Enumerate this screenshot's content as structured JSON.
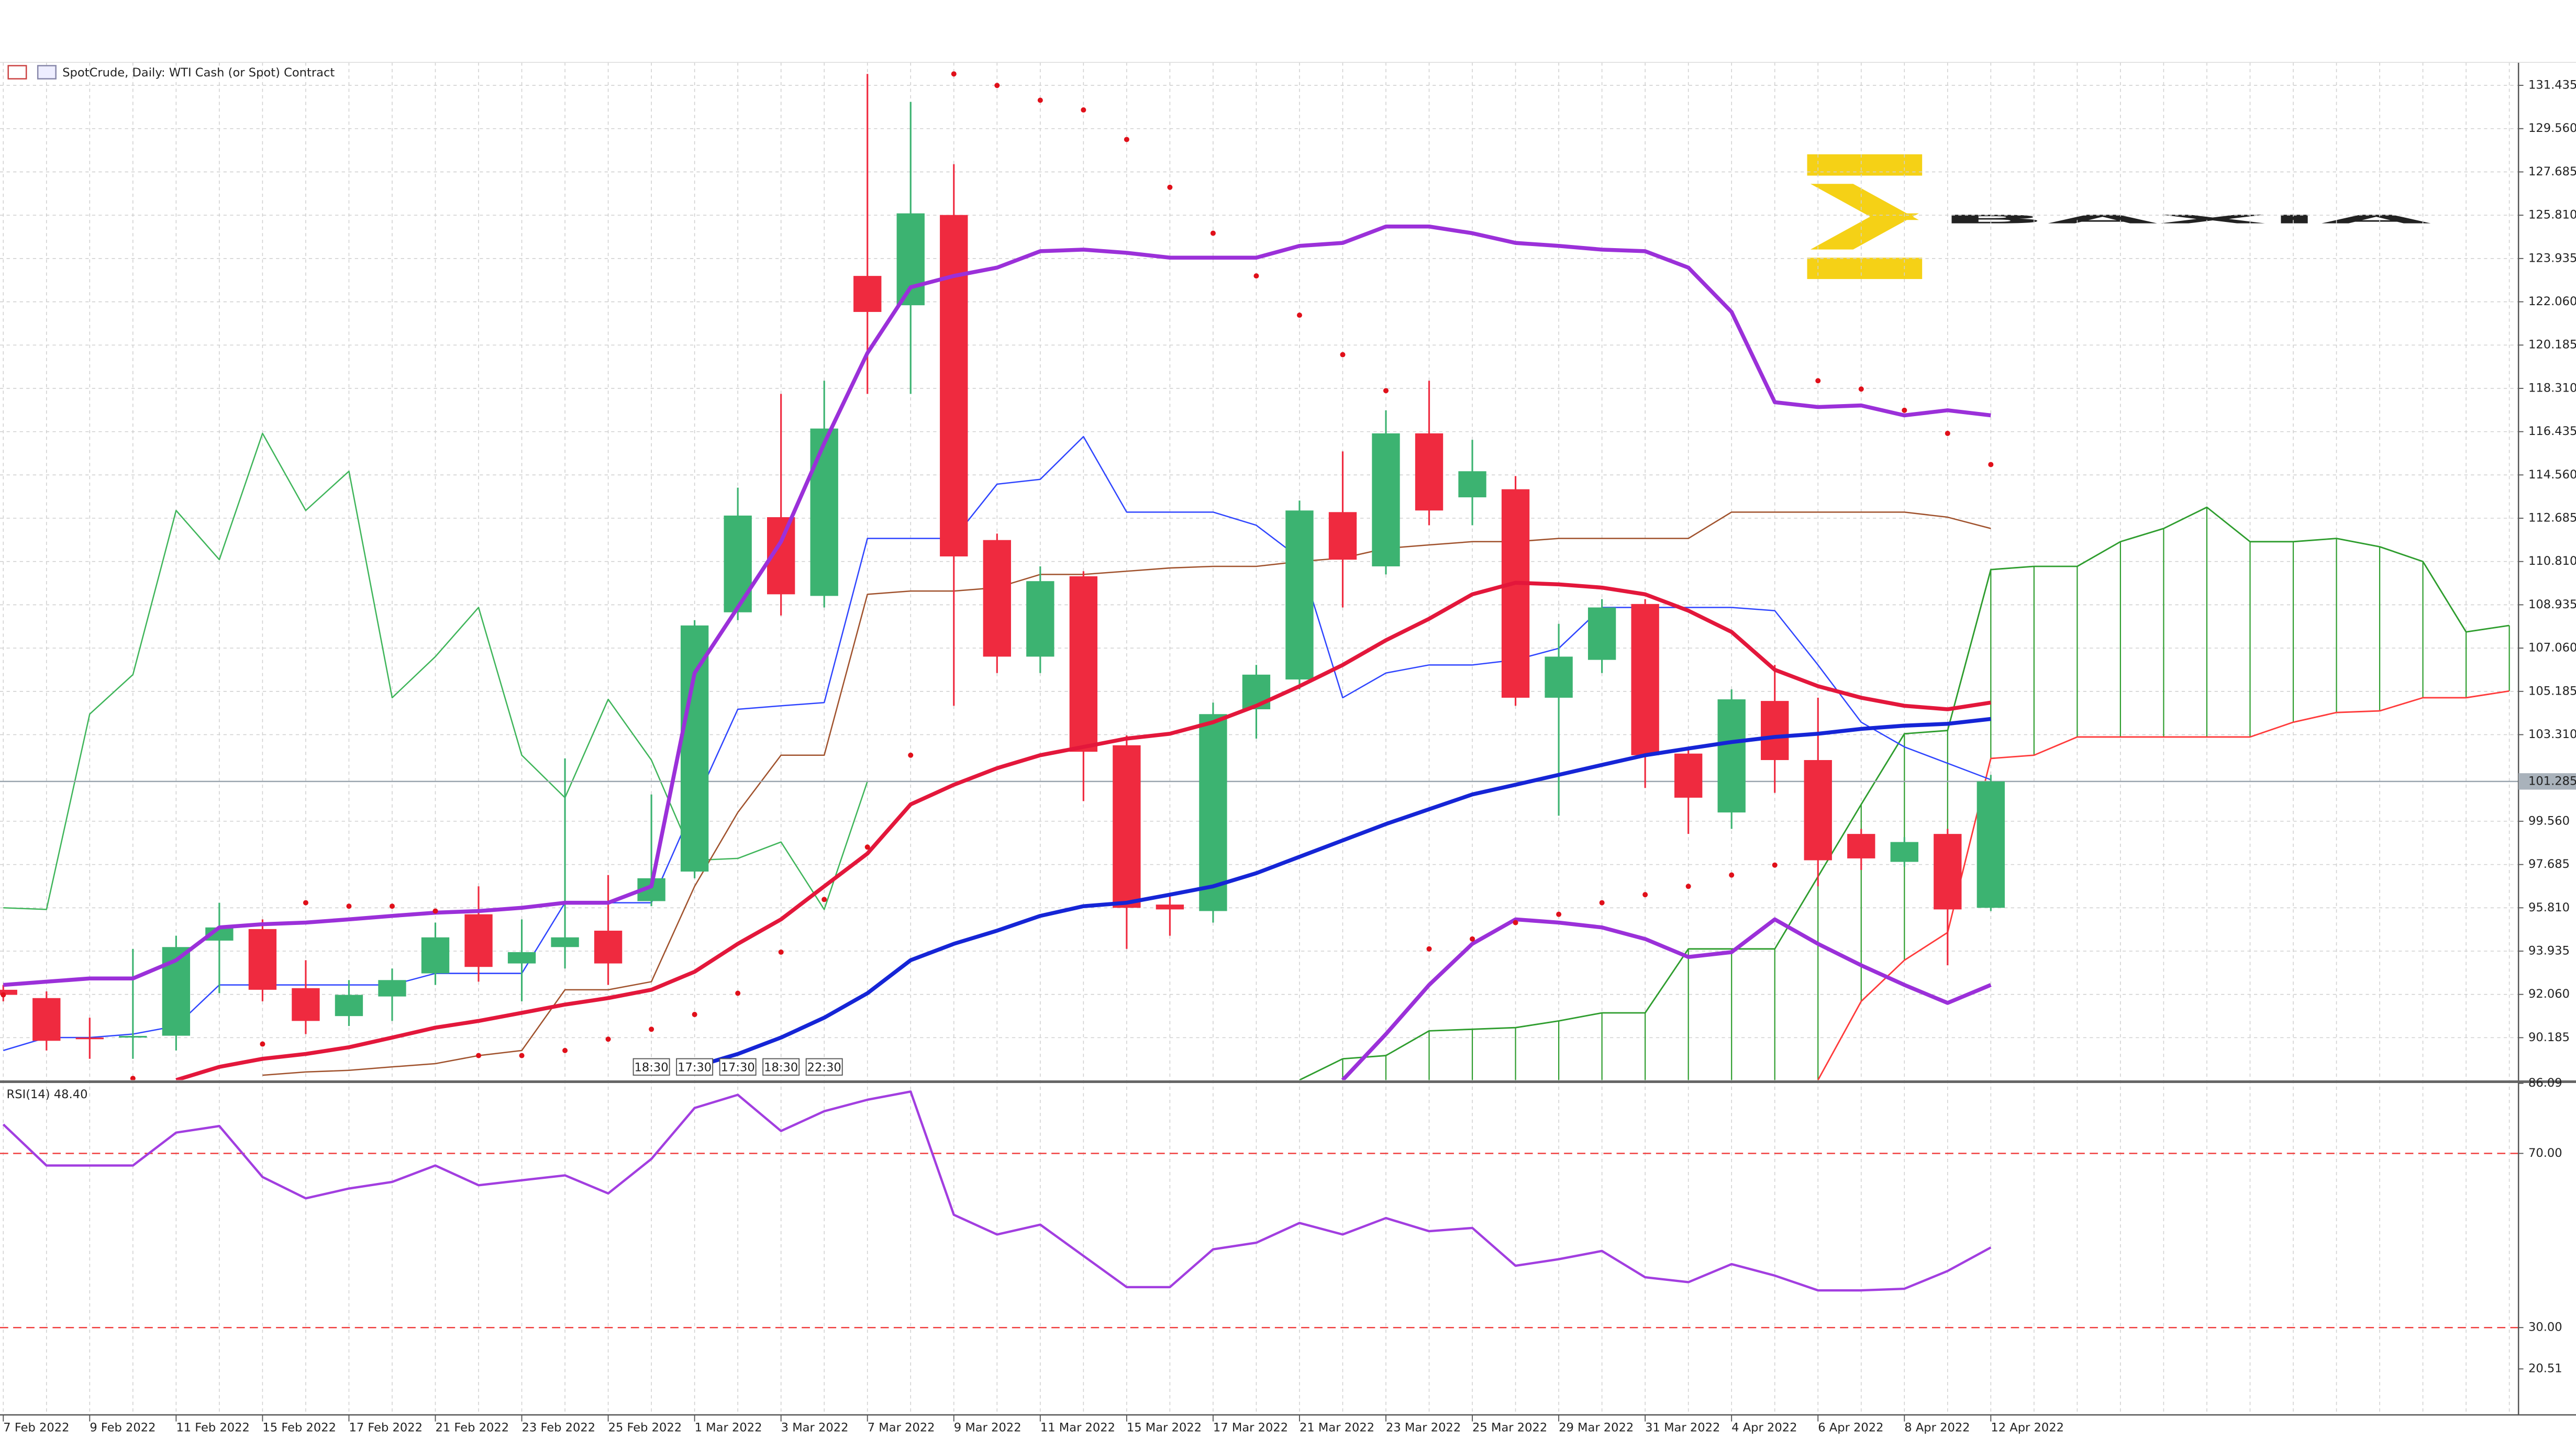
{
  "chart_data": [
    {
      "type": "candlestick",
      "title": "SpotCrude, Daily:  WTI Cash (or Spot) Contract",
      "watermark": "BAXIA",
      "categories": [
        "7 Feb 2022",
        null,
        "9 Feb 2022",
        null,
        "11 Feb 2022",
        null,
        "15 Feb 2022",
        null,
        "17 Feb 2022",
        null,
        "21 Feb 2022",
        null,
        "23 Feb 2022",
        null,
        "25 Feb 2022",
        null,
        "1 Mar 2022",
        null,
        "3 Mar 2022",
        null,
        "7 Mar 2022",
        null,
        "9 Mar 2022",
        null,
        "11 Mar 2022",
        null,
        "15 Mar 2022",
        null,
        "17 Mar 2022",
        null,
        "21 Mar 2022",
        null,
        "23 Mar 2022",
        null,
        "25 Mar 2022",
        null,
        "29 Mar 2022",
        null,
        "31 Mar 2022",
        null,
        "4 Apr 2022",
        null,
        "6 Apr 2022",
        null,
        "8 Apr 2022",
        null,
        "12 Apr 2022",
        null,
        null,
        null,
        null,
        null,
        null,
        null,
        null,
        null,
        null,
        null,
        null
      ],
      "open": [
        92.26,
        91.9,
        90.19,
        90.19,
        90.27,
        94.39,
        94.89,
        92.33,
        91.12,
        91.97,
        92.97,
        95.53,
        93.4,
        94.11,
        94.82,
        96.1,
        97.38,
        108.61,
        112.73,
        109.32,
        123.18,
        121.91,
        125.82,
        111.74,
        106.69,
        110.17,
        102.85,
        95.95,
        95.67,
        104.41,
        105.7,
        112.95,
        110.6,
        116.36,
        113.59,
        113.94,
        104.91,
        106.55,
        108.97,
        102.49,
        99.94,
        104.77,
        102.21,
        99.01,
        97.8,
        99.01,
        95.81,
        null,
        null,
        null,
        null,
        null,
        null,
        null,
        null,
        null,
        null,
        null,
        null
      ],
      "high": [
        92.47,
        92.19,
        91.05,
        94.03,
        94.6,
        96.03,
        95.31,
        93.54,
        92.68,
        93.18,
        95.17,
        96.74,
        95.31,
        102.28,
        97.23,
        100.72,
        108.27,
        114.01,
        118.07,
        118.64,
        131.93,
        130.72,
        128.02,
        112.02,
        110.6,
        110.39,
        103.28,
        96.38,
        104.7,
        106.33,
        113.45,
        115.58,
        117.36,
        118.64,
        116.08,
        114.51,
        108.11,
        109.18,
        109.18,
        102.78,
        105.27,
        106.33,
        104.91,
        99.23,
        98.87,
        99.23,
        101.57,
        null,
        null,
        null,
        null,
        null,
        null,
        null,
        null,
        null,
        null,
        null,
        null
      ],
      "low": [
        91.76,
        89.63,
        89.27,
        89.27,
        89.63,
        92.11,
        91.76,
        90.34,
        90.69,
        90.91,
        92.47,
        92.61,
        91.76,
        93.18,
        92.47,
        95.88,
        97.09,
        108.27,
        108.47,
        108.82,
        118.07,
        118.07,
        104.56,
        105.98,
        105.98,
        100.43,
        94.03,
        94.6,
        95.17,
        103.14,
        105.27,
        108.82,
        110.25,
        112.38,
        112.38,
        104.56,
        99.8,
        105.98,
        101.0,
        99.01,
        99.23,
        100.79,
        96.74,
        97.45,
        97.59,
        93.32,
        95.67,
        null,
        null,
        null,
        null,
        null,
        null,
        null,
        null,
        null,
        null,
        null,
        null
      ],
      "close": [
        92.04,
        90.05,
        90.12,
        90.26,
        94.11,
        94.96,
        92.26,
        90.91,
        92.04,
        92.68,
        94.53,
        93.25,
        93.89,
        94.53,
        93.4,
        97.09,
        108.04,
        112.8,
        109.39,
        116.57,
        121.62,
        125.89,
        111.03,
        106.69,
        109.96,
        102.57,
        95.81,
        95.74,
        104.2,
        105.91,
        113.02,
        110.89,
        116.36,
        113.02,
        114.72,
        104.91,
        106.69,
        108.82,
        102.42,
        100.58,
        104.84,
        102.21,
        97.87,
        97.95,
        98.66,
        95.74,
        101.285,
        null,
        null,
        null,
        null,
        null,
        null,
        null,
        null,
        null,
        null,
        null,
        null
      ],
      "up_color": "#3cb371",
      "down_color": "#ef2a3f",
      "overlays": [
        {
          "style": "cloud",
          "color": "#2e9d2e",
          "values": [
            null,
            null,
            null,
            null,
            null,
            null,
            null,
            null,
            null,
            null,
            null,
            null,
            null,
            null,
            null,
            null,
            null,
            null,
            null,
            null,
            null,
            null,
            null,
            null,
            null,
            null,
            null,
            null,
            null,
            null,
            88.35,
            89.27,
            89.41,
            90.48,
            90.55,
            90.62,
            90.91,
            91.26,
            91.26,
            94.03,
            94.03,
            94.03,
            97.16,
            100.29,
            103.35,
            103.49,
            110.46,
            110.6,
            110.6,
            111.67,
            112.24,
            113.16,
            111.67,
            111.67,
            111.81,
            111.45,
            110.81,
            107.76,
            108.04
          ],
          "values2": [
            null,
            null,
            null,
            null,
            null,
            null,
            null,
            null,
            null,
            null,
            null,
            null,
            null,
            null,
            null,
            null,
            null,
            null,
            null,
            null,
            null,
            null,
            null,
            null,
            null,
            null,
            null,
            null,
            null,
            null,
            null,
            null,
            null,
            null,
            null,
            null,
            null,
            null,
            null,
            null,
            null,
            null,
            88.35,
            91.76,
            93.54,
            94.74,
            102.28,
            102.42,
            103.21,
            103.21,
            103.21,
            103.21,
            103.21,
            103.85,
            104.27,
            104.34,
            104.91,
            104.91,
            105.2
          ],
          "color2": "#ff3b3b"
        },
        {
          "style": "line",
          "color": "#3fb55a",
          "width": 0.8,
          "values": [
            95.81,
            95.74,
            104.2,
            105.91,
            113.02,
            110.89,
            116.36,
            113.02,
            114.72,
            104.91,
            106.69,
            108.82,
            102.42,
            100.58,
            104.84,
            102.21,
            97.87,
            97.95,
            98.66,
            95.74,
            101.285,
            null,
            null,
            null,
            null,
            null,
            null,
            null,
            null,
            null,
            null,
            null,
            null,
            null,
            null,
            null,
            null,
            null,
            null,
            null,
            null,
            null,
            null,
            null,
            null,
            null,
            null,
            null,
            null,
            null,
            null,
            null,
            null,
            null,
            null,
            null,
            null,
            null,
            null
          ]
        },
        {
          "style": "line",
          "color": "#2f45ff",
          "width": 0.8,
          "values": [
            89.63,
            90.19,
            90.19,
            90.34,
            90.69,
            92.47,
            92.47,
            92.47,
            92.47,
            92.47,
            92.97,
            92.97,
            92.97,
            96.03,
            96.03,
            96.03,
            100.29,
            104.41,
            104.56,
            104.7,
            111.81,
            111.81,
            111.81,
            114.16,
            114.37,
            116.22,
            112.95,
            112.95,
            112.95,
            112.38,
            110.96,
            104.91,
            105.98,
            106.33,
            106.33,
            106.55,
            107.05,
            108.82,
            108.82,
            108.82,
            108.82,
            108.68,
            106.33,
            103.85,
            102.78,
            102.07,
            101.36,
            null,
            null,
            null,
            null,
            null,
            null,
            null,
            null,
            null,
            null,
            null,
            null
          ]
        },
        {
          "style": "line",
          "color": "#a0522d",
          "width": 0.8,
          "values": [
            null,
            null,
            null,
            null,
            null,
            null,
            88.56,
            88.7,
            88.77,
            88.92,
            89.06,
            89.41,
            89.63,
            92.26,
            92.26,
            92.61,
            96.74,
            99.94,
            102.42,
            102.42,
            109.39,
            109.53,
            109.53,
            109.68,
            110.25,
            110.25,
            110.39,
            110.53,
            110.6,
            110.6,
            110.81,
            110.96,
            111.38,
            111.53,
            111.67,
            111.67,
            111.81,
            111.81,
            111.81,
            111.81,
            112.95,
            112.95,
            112.95,
            112.95,
            112.95,
            112.73,
            112.24,
            null,
            null,
            null,
            null,
            null,
            null,
            null,
            null,
            null,
            null,
            null,
            null
          ]
        },
        {
          "style": "line",
          "color": "#9b30d9",
          "width": 2.4,
          "values": [
            92.47,
            92.61,
            92.75,
            92.75,
            93.54,
            94.96,
            95.1,
            95.17,
            95.31,
            95.46,
            95.6,
            95.67,
            95.81,
            96.03,
            96.03,
            96.74,
            105.98,
            108.82,
            111.67,
            115.93,
            119.84,
            122.69,
            123.18,
            123.54,
            124.25,
            124.32,
            124.18,
            123.97,
            123.97,
            123.97,
            124.48,
            124.61,
            125.32,
            125.32,
            125.03,
            124.61,
            124.48,
            124.32,
            124.25,
            123.54,
            121.62,
            117.71,
            117.5,
            117.57,
            117.14,
            117.36,
            117.14,
            null,
            null,
            null,
            null,
            null,
            null,
            null,
            null,
            null,
            null,
            null,
            null
          ]
        },
        {
          "style": "line",
          "color": "#9b30d9",
          "width": 2.4,
          "values": [
            null,
            null,
            null,
            null,
            null,
            null,
            null,
            null,
            null,
            null,
            null,
            null,
            null,
            null,
            null,
            null,
            null,
            null,
            null,
            null,
            null,
            null,
            null,
            null,
            null,
            null,
            null,
            null,
            null,
            null,
            null,
            88.35,
            90.34,
            92.47,
            94.25,
            95.31,
            95.17,
            94.96,
            94.46,
            93.68,
            93.89,
            95.31,
            94.25,
            93.32,
            92.47,
            91.69,
            92.47,
            null,
            null,
            null,
            null,
            null,
            null,
            null,
            null,
            null,
            null,
            null,
            null
          ]
        },
        {
          "style": "line",
          "color": "#e3173b",
          "width": 2.4,
          "values": [
            null,
            null,
            null,
            null,
            88.35,
            88.92,
            89.27,
            89.48,
            89.77,
            90.19,
            90.62,
            90.91,
            91.26,
            91.62,
            91.9,
            92.26,
            93.04,
            94.25,
            95.31,
            96.74,
            98.16,
            100.29,
            101.14,
            101.86,
            102.42,
            102.78,
            103.14,
            103.35,
            103.85,
            104.56,
            105.41,
            106.33,
            107.4,
            108.33,
            109.39,
            109.89,
            109.82,
            109.68,
            109.39,
            108.68,
            107.76,
            106.12,
            105.41,
            104.91,
            104.56,
            104.41,
            104.7,
            null,
            null,
            null,
            null,
            null,
            null,
            null,
            null,
            null,
            null,
            null,
            null
          ]
        },
        {
          "style": "line",
          "color": "#1525d6",
          "width": 2.4,
          "values": [
            null,
            null,
            null,
            null,
            null,
            null,
            null,
            null,
            null,
            null,
            null,
            null,
            null,
            null,
            null,
            null,
            88.92,
            89.48,
            90.19,
            91.05,
            92.11,
            93.54,
            94.25,
            94.82,
            95.46,
            95.88,
            96.03,
            96.38,
            96.74,
            97.31,
            98.02,
            98.73,
            99.44,
            100.08,
            100.72,
            101.14,
            101.57,
            102.0,
            102.42,
            102.71,
            102.99,
            103.21,
            103.35,
            103.56,
            103.7,
            103.78,
            103.99,
            null,
            null,
            null,
            null,
            null,
            null,
            null,
            null,
            null,
            null,
            null,
            null
          ]
        },
        {
          "style": "dots",
          "color": "#e0101a",
          "values": [
            92.04,
            null,
            null,
            88.42,
            null,
            null,
            89.91,
            96.03,
            95.88,
            95.88,
            95.67,
            89.41,
            89.41,
            89.63,
            90.12,
            90.55,
            91.19,
            92.11,
            93.89,
            96.17,
            98.44,
            102.42,
            131.93,
            131.43,
            130.79,
            130.37,
            129.09,
            127.02,
            125.03,
            123.18,
            121.48,
            119.77,
            118.21,
            94.03,
            94.46,
            95.17,
            95.53,
            96.03,
            96.38,
            96.74,
            97.23,
            97.66,
            118.64,
            118.28,
            117.36,
            116.36,
            115.01,
            null,
            null,
            null,
            null,
            null,
            null,
            null,
            null,
            null,
            null,
            null,
            null
          ]
        }
      ],
      "time_labels": [
        "18:30",
        "17:30",
        "17:30",
        "18:30",
        "22:30"
      ],
      "last_price": {
        "value": 101.285,
        "label": "101.285"
      },
      "ylim": [
        88.35,
        132.43
      ],
      "yticks": [
        131.435,
        {
          "value": 129.56,
          "label": "129.560"
        },
        127.685,
        {
          "value": 125.81,
          "label": "125.810"
        },
        123.935,
        {
          "value": 122.06,
          "label": "122.060"
        },
        120.185,
        {
          "value": 118.31,
          "label": "118.310"
        },
        116.435,
        {
          "value": 114.56,
          "label": "114.560"
        },
        112.685,
        {
          "value": 110.81,
          "label": "110.810"
        },
        108.935,
        {
          "value": 107.06,
          "label": "107.060"
        },
        105.185,
        {
          "value": 103.31,
          "label": "103.310"
        },
        {
          "value": 99.56,
          "label": "99.560"
        },
        97.685,
        {
          "value": 95.81,
          "label": "95.810"
        },
        93.935,
        {
          "value": 92.06,
          "label": "92.060"
        },
        90.185
      ],
      "grid": true
    },
    {
      "type": "line",
      "title": "RSI(14) 48.40",
      "color": "#a23ee0",
      "values": [
        76.66,
        67.22,
        67.22,
        67.22,
        74.77,
        76.28,
        64.58,
        59.68,
        61.94,
        63.45,
        67.22,
        62.69,
        63.83,
        64.96,
        60.81,
        68.73,
        80.43,
        83.45,
        75.15,
        79.68,
        82.32,
        84.2,
        55.9,
        51.38,
        53.64,
        46.47,
        39.3,
        39.3,
        47.98,
        49.49,
        54.02,
        51.38,
        55.15,
        52.13,
        52.88,
        44.2,
        45.71,
        47.6,
        41.56,
        40.43,
        44.58,
        41.94,
        38.55,
        38.55,
        38.92,
        43.0,
        48.4
      ],
      "ylim": [
        20.51,
        86.09
      ],
      "yticks": [
        86.09,
        {
          "value": 70,
          "label": "70.00"
        },
        {
          "value": 30,
          "label": "30.00"
        },
        20.51
      ],
      "level_color": "#f04040"
    }
  ]
}
